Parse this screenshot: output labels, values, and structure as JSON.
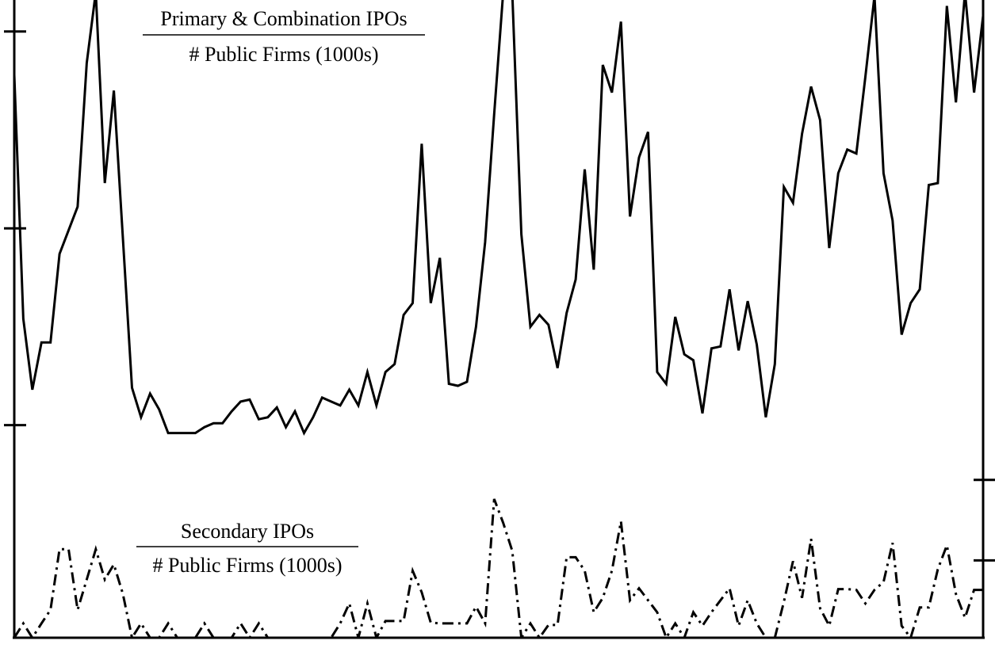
{
  "chart_data": {
    "type": "line",
    "ylim": [
      -0.08,
      3.16
    ],
    "yticks": [
      1,
      2,
      3
    ],
    "y2lim": [
      0,
      8
    ],
    "y2ticks": [
      0.97,
      1.98
    ],
    "series": [
      {
        "color": "#000000",
        "dash": "solid",
        "axis": "y",
        "values": [
          2.78,
          1.54,
          1.18,
          1.42,
          1.42,
          1.87,
          1.99,
          2.11,
          2.84,
          3.2,
          2.23,
          2.7,
          1.95,
          1.19,
          1.04,
          1.16,
          1.08,
          0.96,
          0.96,
          0.96,
          0.96,
          0.99,
          1.01,
          1.01,
          1.07,
          1.12,
          1.13,
          1.03,
          1.04,
          1.09,
          0.99,
          1.07,
          0.96,
          1.04,
          1.14,
          1.12,
          1.1,
          1.18,
          1.1,
          1.27,
          1.1,
          1.27,
          1.31,
          1.56,
          1.62,
          2.43,
          1.62,
          1.85,
          1.21,
          1.2,
          1.22,
          1.5,
          1.93,
          2.58,
          3.2,
          3.2,
          1.97,
          1.5,
          1.56,
          1.51,
          1.29,
          1.57,
          1.74,
          2.3,
          1.79,
          2.83,
          2.69,
          3.05,
          2.06,
          2.36,
          2.49,
          1.27,
          1.21,
          1.55,
          1.36,
          1.33,
          1.06,
          1.39,
          1.4,
          1.69,
          1.38,
          1.63,
          1.41,
          1.04,
          1.31,
          2.21,
          2.13,
          2.48,
          2.72,
          2.55,
          1.9,
          2.28,
          2.4,
          2.38,
          2.77,
          3.18,
          2.28,
          2.04,
          1.46,
          1.62,
          1.69,
          2.22,
          2.23,
          3.13,
          2.64,
          3.2,
          2.69,
          3.08
        ]
      },
      {
        "color": "#000000",
        "dash": "dashdot",
        "axis": "y2",
        "values": [
          0,
          0.18,
          0,
          0.18,
          0.35,
          1.11,
          1.11,
          0.35,
          0.73,
          1.11,
          0.73,
          0.92,
          0.55,
          0,
          0.18,
          0,
          0,
          0.18,
          0,
          0,
          0,
          0.18,
          0,
          0,
          0,
          0.18,
          0,
          0.18,
          0,
          0,
          0,
          0,
          0,
          0,
          0,
          0,
          0.18,
          0.43,
          0,
          0.43,
          0,
          0.21,
          0.21,
          0.21,
          0.84,
          0.57,
          0.19,
          0.18,
          0.18,
          0.18,
          0.18,
          0.39,
          0.18,
          1.74,
          1.44,
          1.09,
          0,
          0.18,
          0,
          0.16,
          0.16,
          1.01,
          1.01,
          0.84,
          0.32,
          0.5,
          0.84,
          1.46,
          0.47,
          0.62,
          0.47,
          0.32,
          0,
          0.18,
          0,
          0.32,
          0.15,
          0.32,
          0.47,
          0.62,
          0.15,
          0.47,
          0.18,
          0,
          0,
          0.45,
          0.96,
          0.5,
          1.24,
          0.37,
          0.15,
          0.61,
          0.61,
          0.6,
          0.43,
          0.6,
          0.7,
          1.19,
          0.15,
          0,
          0.38,
          0.38,
          0.86,
          1.16,
          0.55,
          0.25,
          0.6,
          0.6
        ]
      }
    ],
    "annotations": [
      {
        "numerator": "Primary & Combination IPOs",
        "denominator": "# Public Firms (1000s)"
      },
      {
        "numerator": "Secondary IPOs",
        "denominator": "# Public Firms (1000s)"
      }
    ]
  }
}
